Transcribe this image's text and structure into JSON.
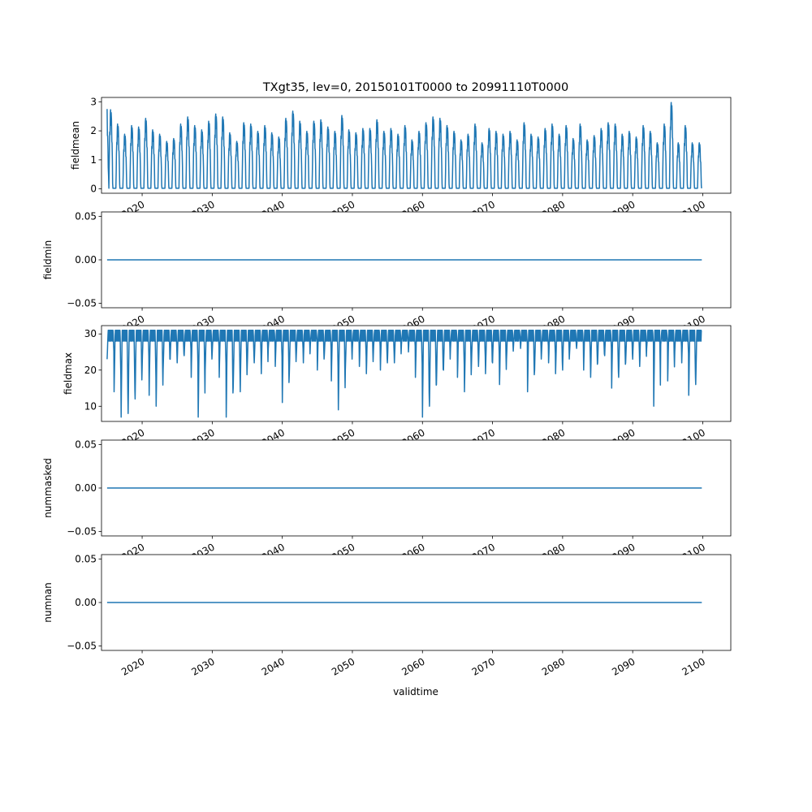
{
  "chart_data": {
    "type": "line",
    "title": "TXgt35, lev=0, 20150101T0000 to 20991110T0000",
    "xlabel": "validtime",
    "x_ticks": [
      "2020",
      "2030",
      "2040",
      "2050",
      "2060",
      "2070",
      "2080",
      "2090",
      "2100"
    ],
    "x_range": [
      2014.2,
      2104.0
    ],
    "data_start_year": 2015,
    "data_end_year": 2099.86,
    "line_color": "#1f77b4",
    "panels": [
      {
        "ylabel": "fieldmean",
        "ylim": [
          -0.15,
          3.15
        ],
        "y_ticks": [
          "0",
          "1",
          "2",
          "3"
        ],
        "y_tick_values": [
          0,
          1,
          2,
          3
        ],
        "kind": "seasonal_peaks",
        "annual_peak_values": [
          2.75,
          2.25,
          1.9,
          2.2,
          2.15,
          2.45,
          2.05,
          1.9,
          1.65,
          1.75,
          2.25,
          2.5,
          2.2,
          2.05,
          2.35,
          2.6,
          2.5,
          1.95,
          1.65,
          2.3,
          2.25,
          2.0,
          2.2,
          1.95,
          1.8,
          2.45,
          2.7,
          2.35,
          2.0,
          2.35,
          2.4,
          2.15,
          2.0,
          2.55,
          2.05,
          1.95,
          2.1,
          2.1,
          2.4,
          2.0,
          2.1,
          1.9,
          2.2,
          1.7,
          2.0,
          2.3,
          2.5,
          2.45,
          2.2,
          2.0,
          1.7,
          1.9,
          2.25,
          1.6,
          2.1,
          2.0,
          1.9,
          2.0,
          1.7,
          2.3,
          1.9,
          1.8,
          2.1,
          2.25,
          1.9,
          2.2,
          1.75,
          2.25,
          1.7,
          1.85,
          2.1,
          2.3,
          2.25,
          1.9,
          2.0,
          1.8,
          2.2,
          2.0,
          1.6,
          2.25,
          3.0,
          1.6,
          2.2,
          1.6,
          1.6
        ]
      },
      {
        "ylabel": "fieldmin",
        "ylim": [
          -0.055,
          0.055
        ],
        "y_ticks": [
          "0.05",
          "0.00",
          "−0.05"
        ],
        "y_tick_values": [
          0.05,
          0,
          -0.05
        ],
        "kind": "constant",
        "value": 0
      },
      {
        "ylabel": "fieldmax",
        "ylim": [
          5.8,
          32.3
        ],
        "y_ticks": [
          "10",
          "20",
          "30"
        ],
        "y_tick_values": [
          10,
          20,
          30
        ],
        "kind": "winter_dips",
        "upper_value": 31,
        "annual_min_values": [
          23,
          14,
          7,
          8,
          12,
          21,
          13,
          10,
          20,
          23,
          22,
          24,
          18,
          7,
          20,
          25,
          18,
          7,
          15,
          14,
          21,
          22,
          19,
          26,
          21,
          11,
          19,
          24,
          22,
          27,
          20,
          24,
          17,
          9,
          20,
          26,
          21,
          19,
          25,
          20,
          22,
          22,
          27,
          25,
          18,
          7,
          10,
          16,
          20,
          26,
          18,
          14,
          22,
          21,
          19,
          22,
          16,
          23,
          27,
          26,
          14,
          20,
          25,
          22,
          19,
          20,
          25,
          26,
          20,
          18,
          22,
          24,
          15,
          18,
          22,
          23,
          21,
          26,
          10,
          27,
          17,
          25,
          22,
          13,
          16
        ]
      },
      {
        "ylabel": "nummasked",
        "ylim": [
          -0.055,
          0.055
        ],
        "y_ticks": [
          "0.05",
          "0.00",
          "−0.05"
        ],
        "y_tick_values": [
          0.05,
          0,
          -0.05
        ],
        "kind": "constant",
        "value": 0
      },
      {
        "ylabel": "numnan",
        "ylim": [
          -0.055,
          0.055
        ],
        "y_ticks": [
          "0.05",
          "0.00",
          "−0.05"
        ],
        "y_tick_values": [
          0.05,
          0,
          -0.05
        ],
        "kind": "constant",
        "value": 0
      }
    ]
  }
}
